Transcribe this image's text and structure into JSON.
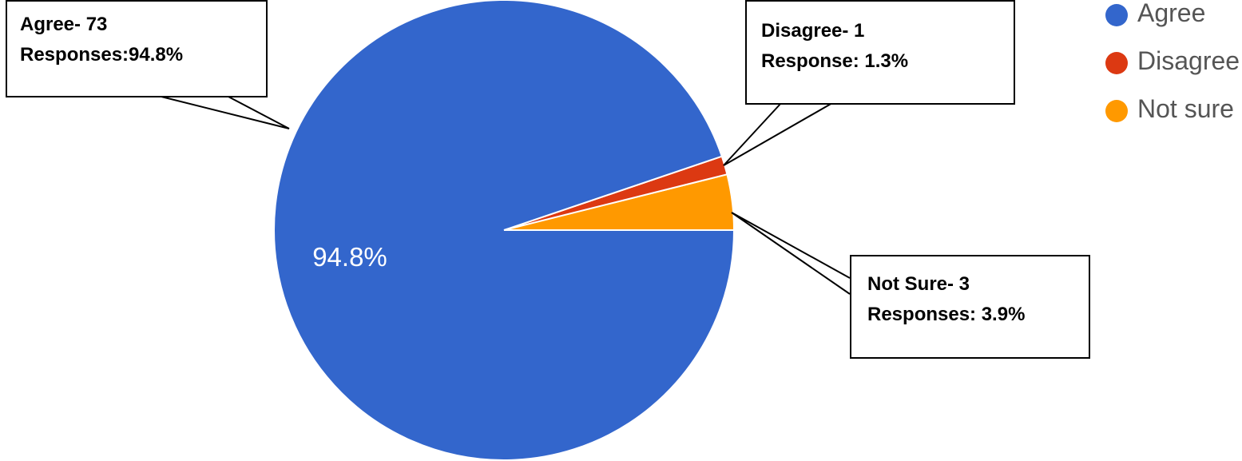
{
  "chart_data": {
    "type": "pie",
    "slices": [
      {
        "label": "Agree",
        "value": 73,
        "percent": 94.8,
        "color": "#3366cc"
      },
      {
        "label": "Disagree",
        "value": 1,
        "percent": 1.3,
        "color": "#dc3912"
      },
      {
        "label": "Not sure",
        "value": 3,
        "percent": 3.9,
        "color": "#ff9900"
      }
    ],
    "slice_labels": {
      "agree": "94.8%"
    },
    "legend_position": "top-right",
    "legend": [
      "Agree",
      "Disagree",
      "Not sure"
    ]
  },
  "callouts": {
    "agree": {
      "line1": "Agree- 73",
      "line2": "Responses:94.8%"
    },
    "disagree": {
      "line1": "Disagree- 1",
      "line2": "Response: 1.3%"
    },
    "not_sure": {
      "line1": "Not Sure- 3",
      "line2": "Responses: 3.9%"
    }
  }
}
